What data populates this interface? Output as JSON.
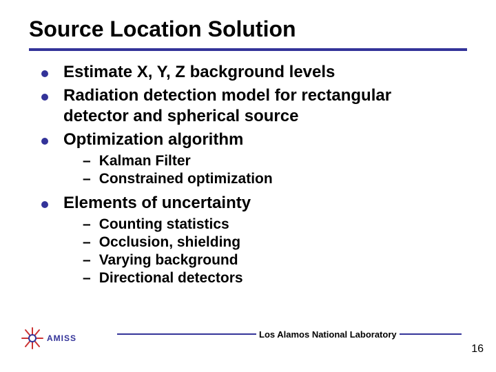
{
  "title": {
    "text": "Source Location Solution",
    "fontsize": 32,
    "color": "#000000"
  },
  "underline_color": "#333399",
  "bullets": {
    "fontsize": 24,
    "sub_fontsize": 21,
    "dot_color": "#333399",
    "items": [
      {
        "text": "Estimate X, Y, Z background levels",
        "subs": []
      },
      {
        "text": "Radiation detection model for rectangular detector and spherical source",
        "subs": []
      },
      {
        "text": "Optimization algorithm",
        "subs": [
          "Kalman Filter",
          "Constrained optimization"
        ]
      },
      {
        "text": "Elements of uncertainty",
        "subs": [
          "Counting statistics",
          "Occlusion, shielding",
          "Varying background",
          "Directional detectors"
        ]
      }
    ]
  },
  "footer": {
    "label": "Los Alamos National Laboratory",
    "label_fontsize": 13,
    "line_color": "#333399",
    "page_number": "16",
    "page_fontsize": 16,
    "logo_text": "AMISS",
    "logo_text_color": "#333399",
    "logo_text_fontsize": 12,
    "logo_ray_color": "#cc3333",
    "logo_center_color": "#333399"
  },
  "background_color": "#ffffff"
}
